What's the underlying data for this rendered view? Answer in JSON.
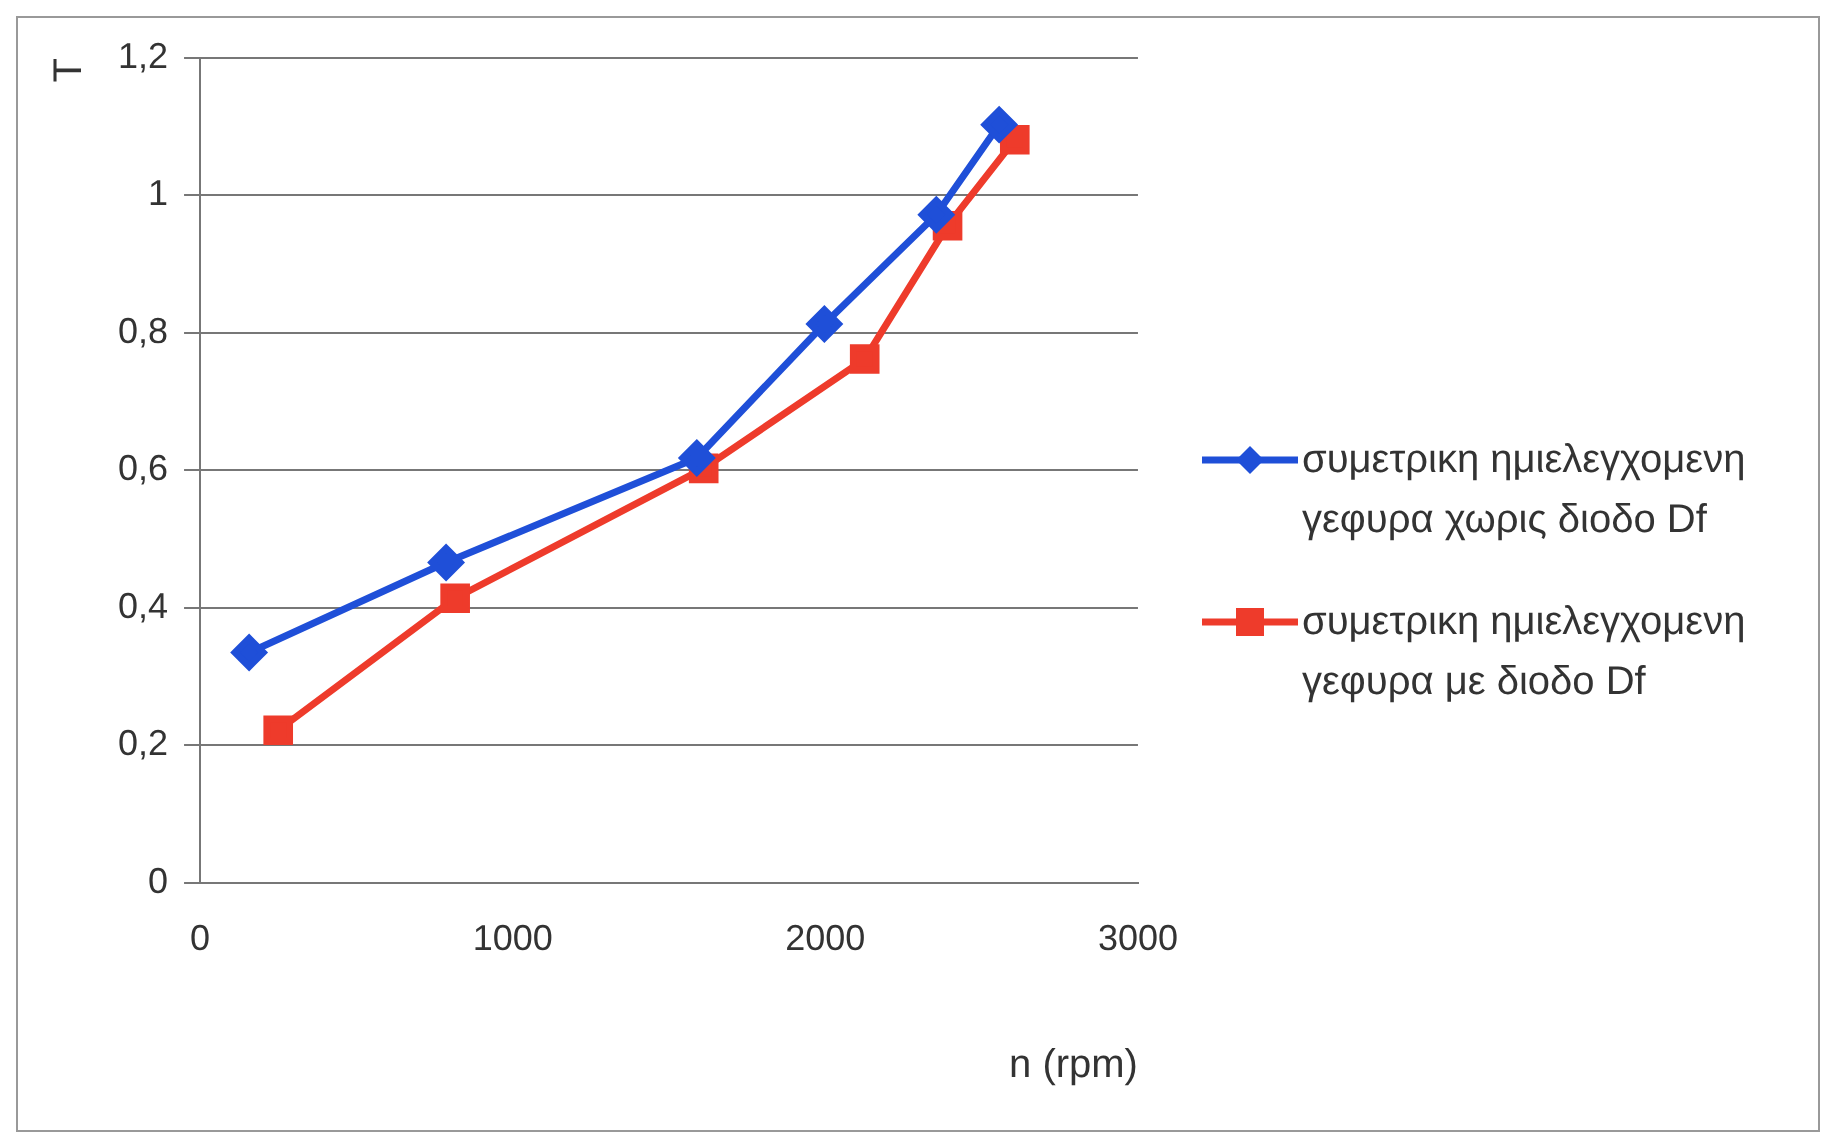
{
  "chart_data": {
    "type": "line",
    "xlabel": "n (rpm)",
    "ylabel": "T",
    "series": [
      {
        "name": "συμετρικη ημιελεγχομενη γεφυρα χωρις διοδο Df",
        "color": "#1f4fd8",
        "marker": "diamond",
        "x": [
          157,
          787,
          1589,
          1997,
          2355,
          2556
        ],
        "values": [
          0.335,
          0.466,
          0.618,
          0.813,
          0.972,
          1.103
        ]
      },
      {
        "name": "συμετρικη ημιελεγχομενη γεφυρα με διοδο Df",
        "color": "#ee3b2b",
        "marker": "square",
        "x": [
          250,
          816,
          1611,
          2126,
          2391,
          2606
        ],
        "values": [
          0.222,
          0.414,
          0.603,
          0.762,
          0.956,
          1.081
        ]
      }
    ],
    "xlim": [
      0,
      3000
    ],
    "xticks": [
      0,
      1000,
      2000,
      3000
    ],
    "ylim": [
      0,
      1.2
    ],
    "yticks": [
      {
        "value": 0,
        "label": "0"
      },
      {
        "value": 0.2,
        "label": "0,2"
      },
      {
        "value": 0.4,
        "label": "0,4"
      },
      {
        "value": 0.6,
        "label": "0,6"
      },
      {
        "value": 0.8,
        "label": "0,8"
      },
      {
        "value": 1,
        "label": "1"
      },
      {
        "value": 1.2,
        "label": "1,2"
      }
    ],
    "grid": "y",
    "legend": "right"
  }
}
